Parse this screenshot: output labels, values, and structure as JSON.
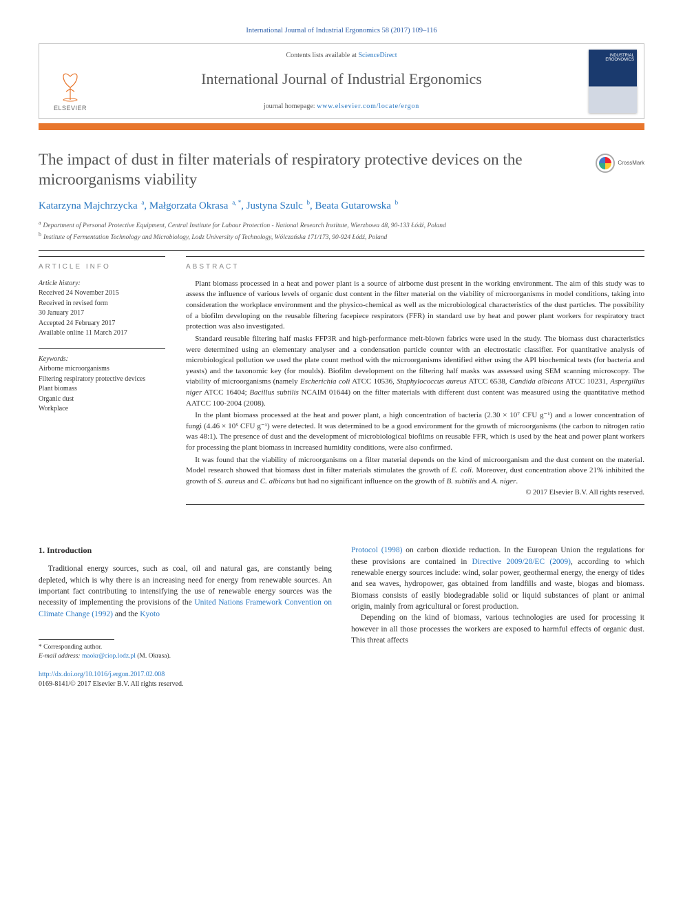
{
  "citation": "International Journal of Industrial Ergonomics 58 (2017) 109–116",
  "header": {
    "contents_prefix": "Contents lists available at ",
    "contents_link": "ScienceDirect",
    "journal": "International Journal of Industrial Ergonomics",
    "homepage_prefix": "journal homepage: ",
    "homepage_url": "www.elsevier.com/locate/ergon",
    "publisher": "ELSEVIER",
    "cover_text_top": "INDUSTRIAL",
    "cover_text_bottom": "ERGONOMICS"
  },
  "crossmark_label": "CrossMark",
  "title": "The impact of dust in filter materials of respiratory protective devices on the microorganisms viability",
  "authors_html": "Katarzyna Majchrzycka <sup>a</sup>, Małgorzata Okrasa <sup>a, *</sup>, Justyna Szulc <sup>b</sup>, Beata Gutarowska <sup>b</sup>",
  "affiliations": [
    {
      "mark": "a",
      "text": "Department of Personal Protective Equipment, Central Institute for Labour Protection - National Research Institute, Wierzbowa 48, 90-133 Łódź, Poland"
    },
    {
      "mark": "b",
      "text": "Institute of Fermentation Technology and Microbiology, Lodz University of Technology, Wólczańska 171/173, 90-924 Łódź, Poland"
    }
  ],
  "article_info": {
    "heading": "ARTICLE INFO",
    "history_label": "Article history:",
    "history": [
      "Received 24 November 2015",
      "Received in revised form",
      "30 January 2017",
      "Accepted 24 February 2017",
      "Available online 11 March 2017"
    ],
    "keywords_label": "Keywords:",
    "keywords": [
      "Airborne microorganisms",
      "Filtering respiratory protective devices",
      "Plant biomass",
      "Organic dust",
      "Workplace"
    ]
  },
  "abstract": {
    "heading": "ABSTRACT",
    "p1": "Plant biomass processed in a heat and power plant is a source of airborne dust present in the working environment. The aim of this study was to assess the influence of various levels of organic dust content in the filter material on the viability of microorganisms in model conditions, taking into consideration the workplace environment and the physico-chemical as well as the microbiological characteristics of the dust particles. The possibility of a biofilm developing on the reusable filtering facepiece respirators (FFR) in standard use by heat and power plant workers for respiratory tract protection was also investigated.",
    "p2_pre": "Standard reusable filtering half masks FFP3R and high-performance melt-blown fabrics were used in the study. The biomass dust characteristics were determined using an elementary analyser and a condensation particle counter with an electrostatic classifier. For quantitative analysis of microbiological pollution we used the plate count method with the microorganisms identified either using the API biochemical tests (for bacteria and yeasts) and the taxonomic key (for moulds). Biofilm development on the filtering half masks was assessed using SEM scanning microscopy. The viability of microorganisms (namely ",
    "p2_org1": "Escherichia coli",
    "p2_a1": " ATCC 10536, ",
    "p2_org2": "Staphylococcus aureus",
    "p2_a2": " ATCC 6538, ",
    "p2_org3": "Candida albicans",
    "p2_a3": " ATCC 10231, ",
    "p2_org4": "Aspergillus niger",
    "p2_a4": " ATCC 16404; ",
    "p2_org5": "Bacillus subtilis",
    "p2_post": " NCAIM 01644) on the filter materials with different dust content was measured using the quantitative method AATCC 100-2004 (2008).",
    "p3": "In the plant biomass processed at the heat and power plant, a high concentration of bacteria (2.30 × 10⁷ CFU g⁻¹) and a lower concentration of fungi (4.46 × 10⁵ CFU g⁻¹) were detected. It was determined to be a good environment for the growth of microorganisms (the carbon to nitrogen ratio was 48:1). The presence of dust and the development of microbiological biofilms on reusable FFR, which is used by the heat and power plant workers for processing the plant biomass in increased humidity conditions, were also confirmed.",
    "p4_pre": "It was found that the viability of microorganisms on a filter material depends on the kind of microorganism and the dust content on the material. Model research showed that biomass dust in filter materials stimulates the growth of ",
    "p4_e1": "E. coli",
    "p4_m1": ". Moreover, dust concentration above 21% inhibited the growth of ",
    "p4_e2": "S. aureus",
    "p4_m2": " and ",
    "p4_e3": "C. albicans",
    "p4_m3": " but had no significant influence on the growth of ",
    "p4_e4": "B. subtilis",
    "p4_m4": " and ",
    "p4_e5": "A. niger",
    "p4_post": ".",
    "copyright": "© 2017 Elsevier B.V. All rights reserved."
  },
  "intro": {
    "heading": "1. Introduction",
    "left_pre": "Traditional energy sources, such as coal, oil and natural gas, are constantly being depleted, which is why there is an increasing need for energy from renewable sources. An important fact contributing to intensifying the use of renewable energy sources was the necessity of implementing the provisions of the ",
    "left_link1": "United Nations Framework Convention on Climate Change (1992)",
    "left_mid": " and the ",
    "left_link2": "Kyoto",
    "right_link_cont": "Protocol (1998)",
    "right_mid1": " on carbon dioxide reduction. In the European Union the regulations for these provisions are contained in ",
    "right_link3": "Directive 2009/28/EC (2009)",
    "right_post": ", according to which renewable energy sources include: wind, solar power, geothermal energy, the energy of tides and sea waves, hydropower, gas obtained from landfills and waste, biogas and biomass. Biomass consists of easily biodegradable solid or liquid substances of plant or animal origin, mainly from agricultural or forest production.",
    "right_p2": "Depending on the kind of biomass, various technologies are used for processing it however in all those processes the workers are exposed to harmful effects of organic dust. This threat affects"
  },
  "footnote": {
    "corresponding": "* Corresponding author.",
    "email_label": "E-mail address:",
    "email": "maokr@ciop.lodz.pl",
    "email_who": " (M. Okrasa)."
  },
  "doi": {
    "url": "http://dx.doi.org/10.1016/j.ergon.2017.02.008",
    "issn_line": "0169-8141/© 2017 Elsevier B.V. All rights reserved."
  }
}
